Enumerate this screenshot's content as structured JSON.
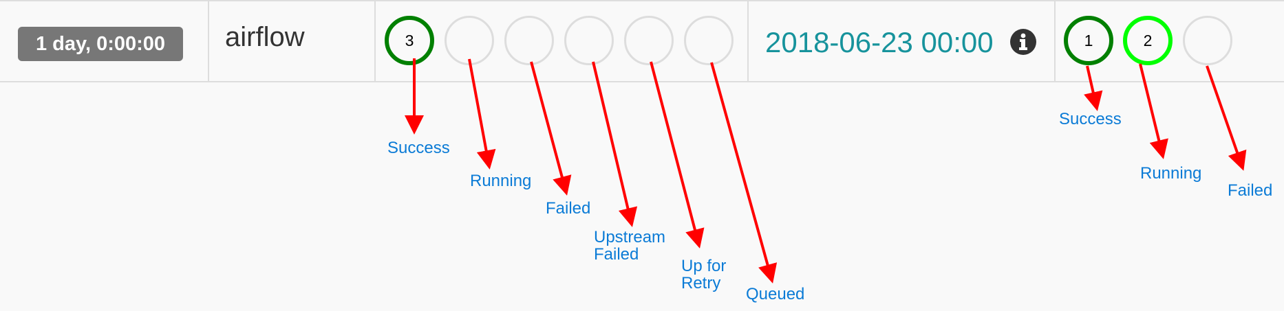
{
  "dag_run": {
    "schedule_interval": "1 day, 0:00:00",
    "owner": "airflow",
    "execution_date": "2018-06-23 00:00"
  },
  "task_states": {
    "success_count": "3",
    "running_count": "",
    "failed_count": "",
    "upstream_failed_count": "",
    "up_for_retry_count": "",
    "queued_count": ""
  },
  "dag_run_states": {
    "success_count": "1",
    "running_count": "2",
    "failed_count": ""
  },
  "annotations": {
    "task_success": "Success",
    "task_running": "Running",
    "task_failed": "Failed",
    "task_upstream_failed_line1": "Upstream",
    "task_upstream_failed_line2": "Failed",
    "task_up_for_retry_line1": "Up for",
    "task_up_for_retry_line2": "Retry",
    "task_queued": "Queued",
    "run_success": "Success",
    "run_running": "Running",
    "run_failed": "Failed"
  },
  "colors": {
    "success": "#008000",
    "running": "#00ff00",
    "empty": "#dddddd",
    "annotation_arrow": "#ff0000",
    "annotation_text": "#0b7bd6",
    "execution_date": "#17939c"
  },
  "icons": {
    "info": "info-circle-icon"
  }
}
